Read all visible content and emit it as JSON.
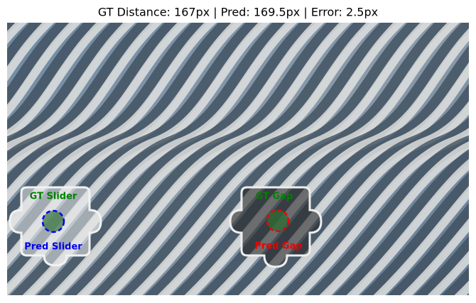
{
  "title": "GT Distance: 167px | Pred: 169.5px | Error: 2.5px",
  "annotations": {
    "gt_slider": "GT Slider",
    "pred_slider": "Pred Slider",
    "gt_gap": "GT Gap",
    "pred_gap": "Pred Gap"
  }
}
